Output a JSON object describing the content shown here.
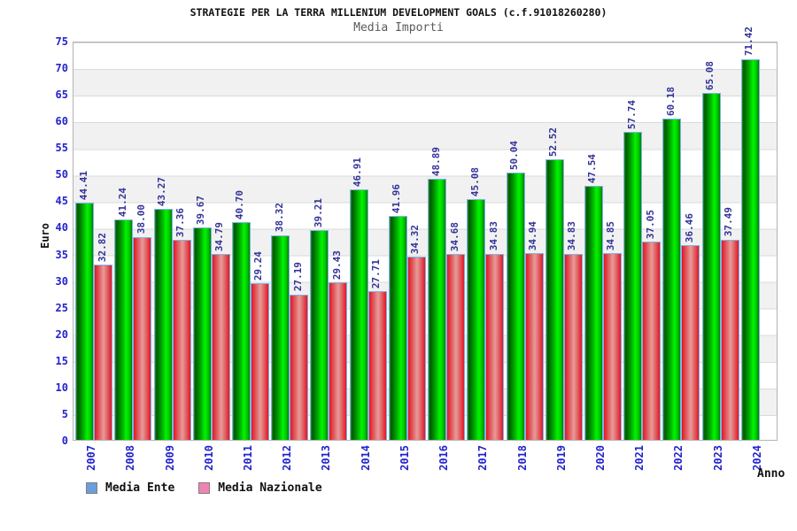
{
  "title": "STRATEGIE PER LA TERRA MILLENIUM DEVELOPMENT GOALS (c.f.91018260280)",
  "subtitle": "Media Importi",
  "axes": {
    "y_label": "Euro",
    "x_label": "Anno",
    "y_ticks": [
      0,
      5,
      10,
      15,
      20,
      25,
      30,
      35,
      40,
      45,
      50,
      55,
      60,
      65,
      70,
      75
    ],
    "y_max": 75
  },
  "legend": [
    {
      "label": "Media Ente",
      "chip_color": "#6c9edc"
    },
    {
      "label": "Media Nazionale",
      "chip_color": "#ef84b2"
    }
  ],
  "colors": {
    "bar_green": "#00cc00",
    "bar_red": "#e05050",
    "bar_border": "#7cb4e4",
    "tick_blue": "#2323cc",
    "value_label_navy": "#333399",
    "band_gray": "#f1f1f1",
    "frame_gray": "#b3b3b3"
  },
  "chart_data": {
    "type": "bar",
    "title": "STRATEGIE PER LA TERRA MILLENIUM DEVELOPMENT GOALS (c.f.91018260280)",
    "subtitle": "Media Importi",
    "xlabel": "Anno",
    "ylabel": "Euro",
    "ylim": [
      0,
      75
    ],
    "grid": "horizontal-bands-every-5",
    "legend_position": "bottom-left",
    "categories": [
      "2007",
      "2008",
      "2009",
      "2010",
      "2011",
      "2012",
      "2013",
      "2014",
      "2015",
      "2016",
      "2017",
      "2018",
      "2019",
      "2020",
      "2021",
      "2022",
      "2023",
      "2024"
    ],
    "series": [
      {
        "name": "Media Ente",
        "values": [
          44.41,
          41.24,
          43.27,
          39.67,
          40.7,
          38.32,
          39.21,
          46.91,
          41.96,
          48.89,
          45.08,
          50.04,
          52.52,
          47.54,
          57.74,
          60.18,
          65.08,
          71.42
        ]
      },
      {
        "name": "Media Nazionale",
        "values": [
          32.82,
          38.0,
          37.36,
          34.79,
          29.24,
          27.19,
          29.43,
          27.71,
          34.32,
          34.68,
          34.83,
          34.94,
          34.83,
          34.85,
          37.05,
          36.46,
          37.49,
          null
        ]
      }
    ]
  }
}
